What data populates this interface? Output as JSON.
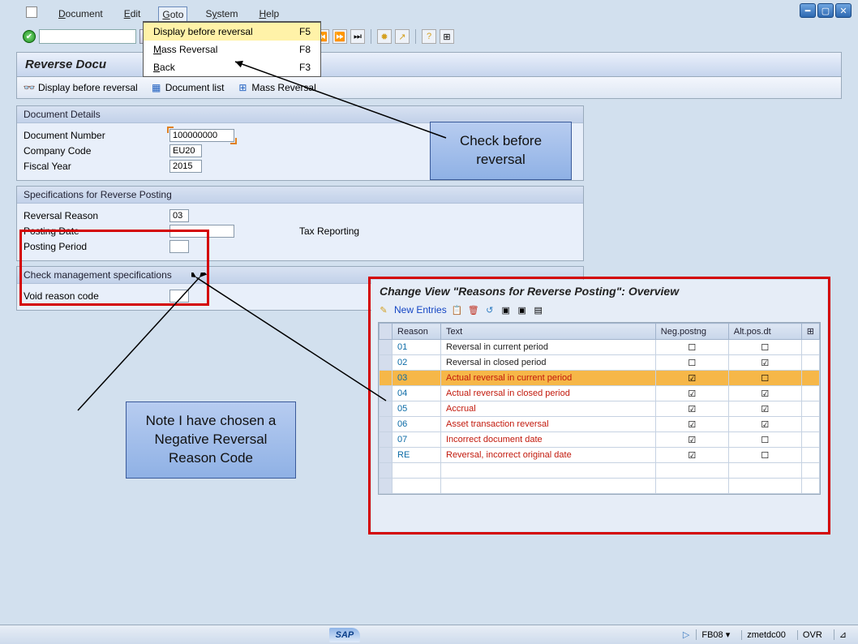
{
  "menubar": {
    "items": [
      "Document",
      "Edit",
      "Goto",
      "System",
      "Help"
    ],
    "active": "Goto"
  },
  "dropdown": {
    "rows": [
      {
        "label": "Display before reversal",
        "shortcut": "F5",
        "hl": true
      },
      {
        "label": "Mass Reversal",
        "shortcut": "F8",
        "hl": false
      },
      {
        "label": "Back",
        "shortcut": "F3",
        "hl": false
      }
    ]
  },
  "pageTitle": "Reverse Docu",
  "actions": {
    "displayBefore": "Display before reversal",
    "documentList": "Document list",
    "massReversal": "Mass Reversal"
  },
  "sections": {
    "docDetails": {
      "header": "Document Details",
      "docNumber": {
        "label": "Document Number",
        "value": "100000000"
      },
      "companyCode": {
        "label": "Company Code",
        "value": "EU20"
      },
      "fiscalYear": {
        "label": "Fiscal Year",
        "value": "2015"
      }
    },
    "revPosting": {
      "header": "Specifications for Reverse Posting",
      "reversalReason": {
        "label": "Reversal Reason",
        "value": "03"
      },
      "postingDate": {
        "label": "Posting Date",
        "value": ""
      },
      "taxReporting": {
        "label": "Tax Reporting"
      },
      "postingPeriod": {
        "label": "Posting Period",
        "value": ""
      }
    },
    "checkMgmt": {
      "header": "Check management specifications",
      "voidReason": {
        "label": "Void reason code",
        "value": ""
      }
    }
  },
  "callouts": {
    "checkBefore": "Check before reversal",
    "note": "Note I have chosen a Negative Reversal Reason Code"
  },
  "panel": {
    "title": "Change View \"Reasons for Reverse Posting\": Overview",
    "newEntries": "New Entries",
    "columns": [
      "Reason",
      "Text",
      "Neg.postng",
      "Alt.pos.dt"
    ],
    "rows": [
      {
        "reason": "01",
        "text": "Reversal in current period",
        "neg": false,
        "alt": false,
        "red": false,
        "hl": false
      },
      {
        "reason": "02",
        "text": "Reversal in closed period",
        "neg": false,
        "alt": true,
        "red": false,
        "hl": false
      },
      {
        "reason": "03",
        "text": "Actual reversal in current period",
        "neg": true,
        "alt": false,
        "red": true,
        "hl": true
      },
      {
        "reason": "04",
        "text": "Actual reversal in closed period",
        "neg": true,
        "alt": true,
        "red": true,
        "hl": false
      },
      {
        "reason": "05",
        "text": "Accrual",
        "neg": true,
        "alt": true,
        "red": true,
        "hl": false
      },
      {
        "reason": "06",
        "text": "Asset transaction reversal",
        "neg": true,
        "alt": true,
        "red": true,
        "hl": false
      },
      {
        "reason": "07",
        "text": "Incorrect document date",
        "neg": true,
        "alt": false,
        "red": true,
        "hl": false
      },
      {
        "reason": "RE",
        "text": "Reversal, incorrect original date",
        "neg": true,
        "alt": false,
        "red": true,
        "hl": false
      }
    ],
    "emptyRows": 2
  },
  "status": {
    "tcode": "FB08",
    "system": "zmetdc00",
    "mode": "OVR"
  },
  "colors": {
    "red": "#d40000",
    "calloutBg": "#a6c2ec",
    "highlightRow": "#f6b748"
  }
}
